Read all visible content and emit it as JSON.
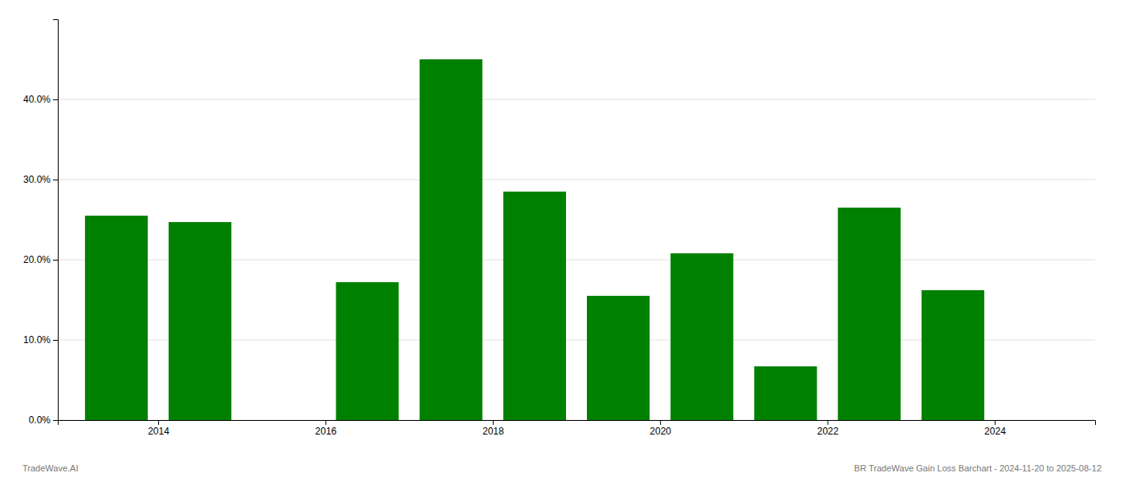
{
  "chart_data": {
    "type": "bar",
    "x": [
      2013.5,
      2014.5,
      2016.5,
      2017.5,
      2018.5,
      2019.5,
      2020.5,
      2021.5,
      2022.5,
      2023.5
    ],
    "values": [
      0.255,
      0.247,
      0.172,
      0.45,
      0.285,
      0.155,
      0.208,
      0.067,
      0.265,
      0.162
    ],
    "color": "#008000",
    "xlim": [
      2012.8,
      2025.2
    ],
    "xticks": [
      2014,
      2016,
      2018,
      2020,
      2022,
      2024
    ],
    "ylim": [
      0,
      0.5
    ],
    "yticks": [
      {
        "value": 0.0,
        "label": "0.0%"
      },
      {
        "value": 0.1,
        "label": "10.0%"
      },
      {
        "value": 0.2,
        "label": "20.0%"
      },
      {
        "value": 0.3,
        "label": "30.0%"
      },
      {
        "value": 0.4,
        "label": "40.0%"
      }
    ],
    "grid": true,
    "annotations": [
      "TradeWave.AI",
      "BR TradeWave Gain Loss Barchart - 2024-11-20 to 2025-08-12"
    ]
  }
}
